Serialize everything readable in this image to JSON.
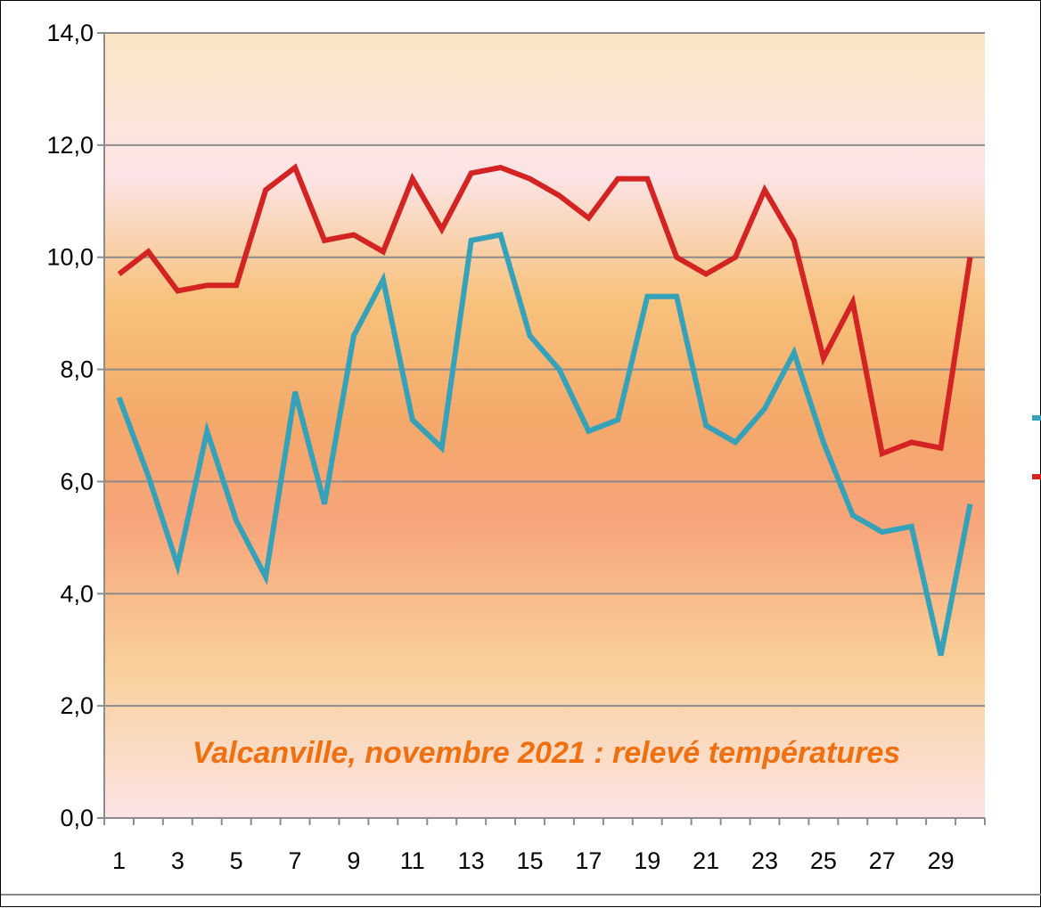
{
  "chart_data": {
    "type": "line",
    "title": "Valcanville, novembre 2021 : relevé températures",
    "xlabel": "",
    "ylabel": "",
    "ylim": [
      0,
      14
    ],
    "y_ticks": [
      "0,0",
      "2,0",
      "4,0",
      "6,0",
      "8,0",
      "10,0",
      "12,0",
      "14,0"
    ],
    "x_tick_labels": [
      "1",
      "3",
      "5",
      "7",
      "9",
      "11",
      "13",
      "15",
      "17",
      "19",
      "21",
      "23",
      "25",
      "27",
      "29"
    ],
    "x": [
      1,
      2,
      3,
      4,
      5,
      6,
      7,
      8,
      9,
      10,
      11,
      12,
      13,
      14,
      15,
      16,
      17,
      18,
      19,
      20,
      21,
      22,
      23,
      24,
      25,
      26,
      27,
      28,
      29,
      30
    ],
    "grid": true,
    "legend": "right (labels cut off)",
    "series": [
      {
        "color": "#35a2ba",
        "values": [
          7.5,
          6.1,
          4.5,
          6.9,
          5.3,
          4.3,
          7.6,
          5.6,
          8.6,
          9.6,
          7.1,
          6.6,
          10.3,
          10.4,
          8.6,
          8.0,
          6.9,
          7.1,
          9.3,
          9.3,
          7.0,
          6.7,
          7.3,
          8.3,
          6.7,
          5.4,
          5.1,
          5.2,
          2.9,
          5.6
        ]
      },
      {
        "color": "#d42323",
        "values": [
          9.7,
          10.1,
          9.4,
          9.5,
          9.5,
          11.2,
          11.6,
          10.3,
          10.4,
          10.1,
          11.4,
          10.5,
          11.5,
          11.6,
          11.4,
          11.1,
          10.7,
          11.4,
          11.4,
          10.0,
          9.7,
          10.0,
          11.2,
          10.3,
          8.2,
          9.2,
          6.5,
          6.7,
          6.6,
          10.0
        ]
      }
    ]
  }
}
